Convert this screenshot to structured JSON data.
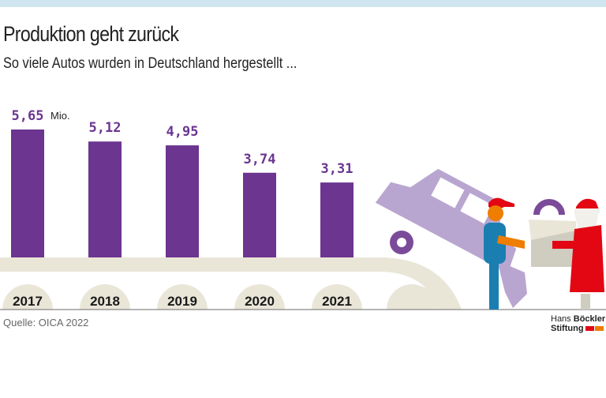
{
  "header": {
    "title": "Produktion geht zurück",
    "subtitle": "So viele Autos wurden in Deutschland hergestellt ..."
  },
  "chart_data": {
    "type": "bar",
    "title": "Produktion geht zurück",
    "subtitle": "So viele Autos wurden in Deutschland hergestellt ...",
    "categories": [
      "2017",
      "2018",
      "2019",
      "2020",
      "2021"
    ],
    "values": [
      5.65,
      5.12,
      4.95,
      3.74,
      3.31
    ],
    "value_labels": [
      "5,65",
      "5,12",
      "4,95",
      "3,74",
      "3,31"
    ],
    "unit_label": "Mio.",
    "ylim": [
      0,
      5.65
    ],
    "grid": false,
    "bar_color": "#6b3590"
  },
  "footer": {
    "source": "Quelle: OICA 2022",
    "logo": {
      "line1_light": "Hans",
      "line1_bold": "Böckler",
      "line2": "Stiftung"
    }
  },
  "colors": {
    "belt": "#e9e6d8",
    "car": "#b9a6d0",
    "wheel": "#7b4b9a",
    "worker_overall": "#1a7fb0",
    "worker_skin": "#ef7d00",
    "cap": "#e30613",
    "santa": "#e30613",
    "box": "#cfccc0"
  }
}
